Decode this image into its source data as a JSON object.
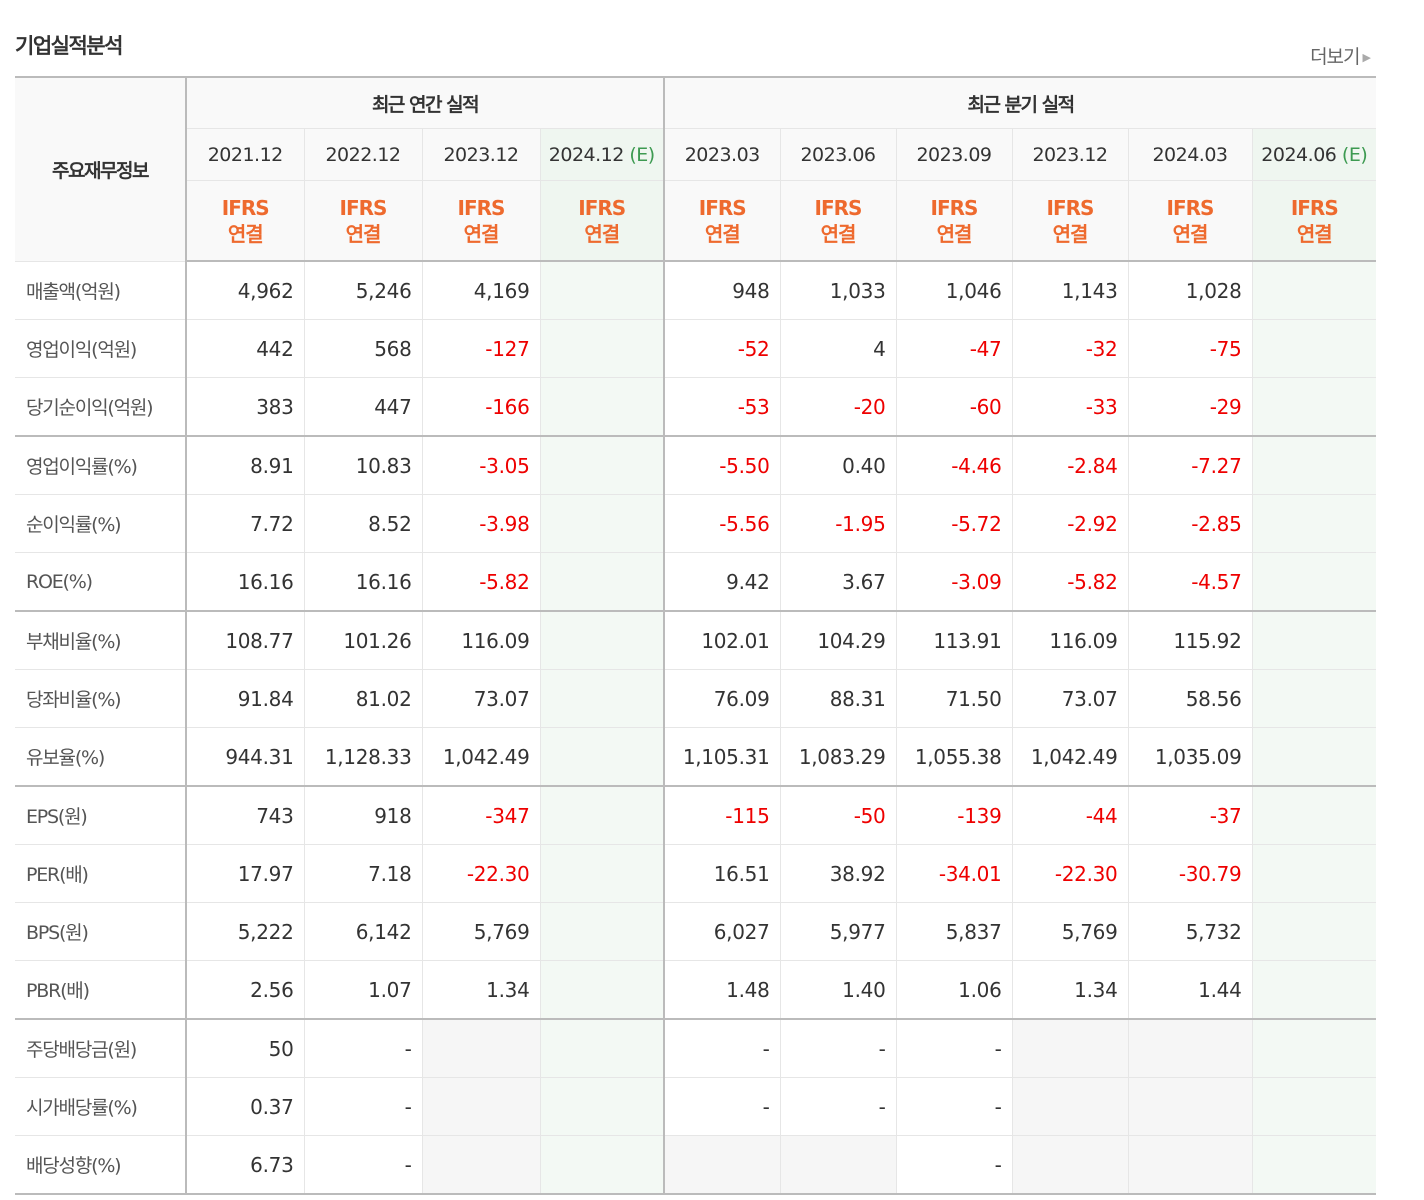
{
  "title": "기업실적분석",
  "more_label": "더보기",
  "header": {
    "corner_label": "주요재무정보",
    "groups": [
      "최근 연간 실적",
      "최근 분기 실적"
    ],
    "periods": [
      {
        "label": "2021.12",
        "estimate": false
      },
      {
        "label": "2022.12",
        "estimate": false
      },
      {
        "label": "2023.12",
        "estimate": false
      },
      {
        "label": "2024.12",
        "estimate": true
      },
      {
        "label": "2023.03",
        "estimate": false
      },
      {
        "label": "2023.06",
        "estimate": false
      },
      {
        "label": "2023.09",
        "estimate": false
      },
      {
        "label": "2023.12",
        "estimate": false
      },
      {
        "label": "2024.03",
        "estimate": false
      },
      {
        "label": "2024.06",
        "estimate": true
      }
    ],
    "estimate_mark": "(E)",
    "basis_line1": "IFRS",
    "basis_line2": "연결"
  },
  "colors": {
    "negative": "#ee0000",
    "ifrs": "#ee6a2e",
    "estimate_mark": "#3d9a51"
  },
  "rows": [
    {
      "label": "매출액(억원)",
      "values": [
        "4,962",
        "5,246",
        "4,169",
        "",
        "948",
        "1,033",
        "1,046",
        "1,143",
        "1,028",
        ""
      ]
    },
    {
      "label": "영업이익(억원)",
      "values": [
        "442",
        "568",
        "-127",
        "",
        "-52",
        "4",
        "-47",
        "-32",
        "-75",
        ""
      ]
    },
    {
      "label": "당기순이익(억원)",
      "values": [
        "383",
        "447",
        "-166",
        "",
        "-53",
        "-20",
        "-60",
        "-33",
        "-29",
        ""
      ],
      "group_end": true
    },
    {
      "label": "영업이익률(%)",
      "values": [
        "8.91",
        "10.83",
        "-3.05",
        "",
        "-5.50",
        "0.40",
        "-4.46",
        "-2.84",
        "-7.27",
        ""
      ]
    },
    {
      "label": "순이익률(%)",
      "values": [
        "7.72",
        "8.52",
        "-3.98",
        "",
        "-5.56",
        "-1.95",
        "-5.72",
        "-2.92",
        "-2.85",
        ""
      ]
    },
    {
      "label": "ROE(%)",
      "values": [
        "16.16",
        "16.16",
        "-5.82",
        "",
        "9.42",
        "3.67",
        "-3.09",
        "-5.82",
        "-4.57",
        ""
      ],
      "group_end": true
    },
    {
      "label": "부채비율(%)",
      "values": [
        "108.77",
        "101.26",
        "116.09",
        "",
        "102.01",
        "104.29",
        "113.91",
        "116.09",
        "115.92",
        ""
      ]
    },
    {
      "label": "당좌비율(%)",
      "values": [
        "91.84",
        "81.02",
        "73.07",
        "",
        "76.09",
        "88.31",
        "71.50",
        "73.07",
        "58.56",
        ""
      ]
    },
    {
      "label": "유보율(%)",
      "values": [
        "944.31",
        "1,128.33",
        "1,042.49",
        "",
        "1,105.31",
        "1,083.29",
        "1,055.38",
        "1,042.49",
        "1,035.09",
        ""
      ],
      "group_end": true
    },
    {
      "label": "EPS(원)",
      "values": [
        "743",
        "918",
        "-347",
        "",
        "-115",
        "-50",
        "-139",
        "-44",
        "-37",
        ""
      ]
    },
    {
      "label": "PER(배)",
      "values": [
        "17.97",
        "7.18",
        "-22.30",
        "",
        "16.51",
        "38.92",
        "-34.01",
        "-22.30",
        "-30.79",
        ""
      ]
    },
    {
      "label": "BPS(원)",
      "values": [
        "5,222",
        "6,142",
        "5,769",
        "",
        "6,027",
        "5,977",
        "5,837",
        "5,769",
        "5,732",
        ""
      ]
    },
    {
      "label": "PBR(배)",
      "values": [
        "2.56",
        "1.07",
        "1.34",
        "",
        "1.48",
        "1.40",
        "1.06",
        "1.34",
        "1.44",
        ""
      ],
      "group_end": true
    },
    {
      "label": "주당배당금(원)",
      "values": [
        "50",
        "-",
        null,
        "",
        "-",
        "-",
        "-",
        null,
        null,
        ""
      ]
    },
    {
      "label": "시가배당률(%)",
      "values": [
        "0.37",
        "-",
        null,
        "",
        "-",
        "-",
        "-",
        null,
        null,
        ""
      ]
    },
    {
      "label": "배당성향(%)",
      "values": [
        "6.73",
        "-",
        null,
        "",
        null,
        null,
        "-",
        null,
        null,
        ""
      ]
    }
  ]
}
